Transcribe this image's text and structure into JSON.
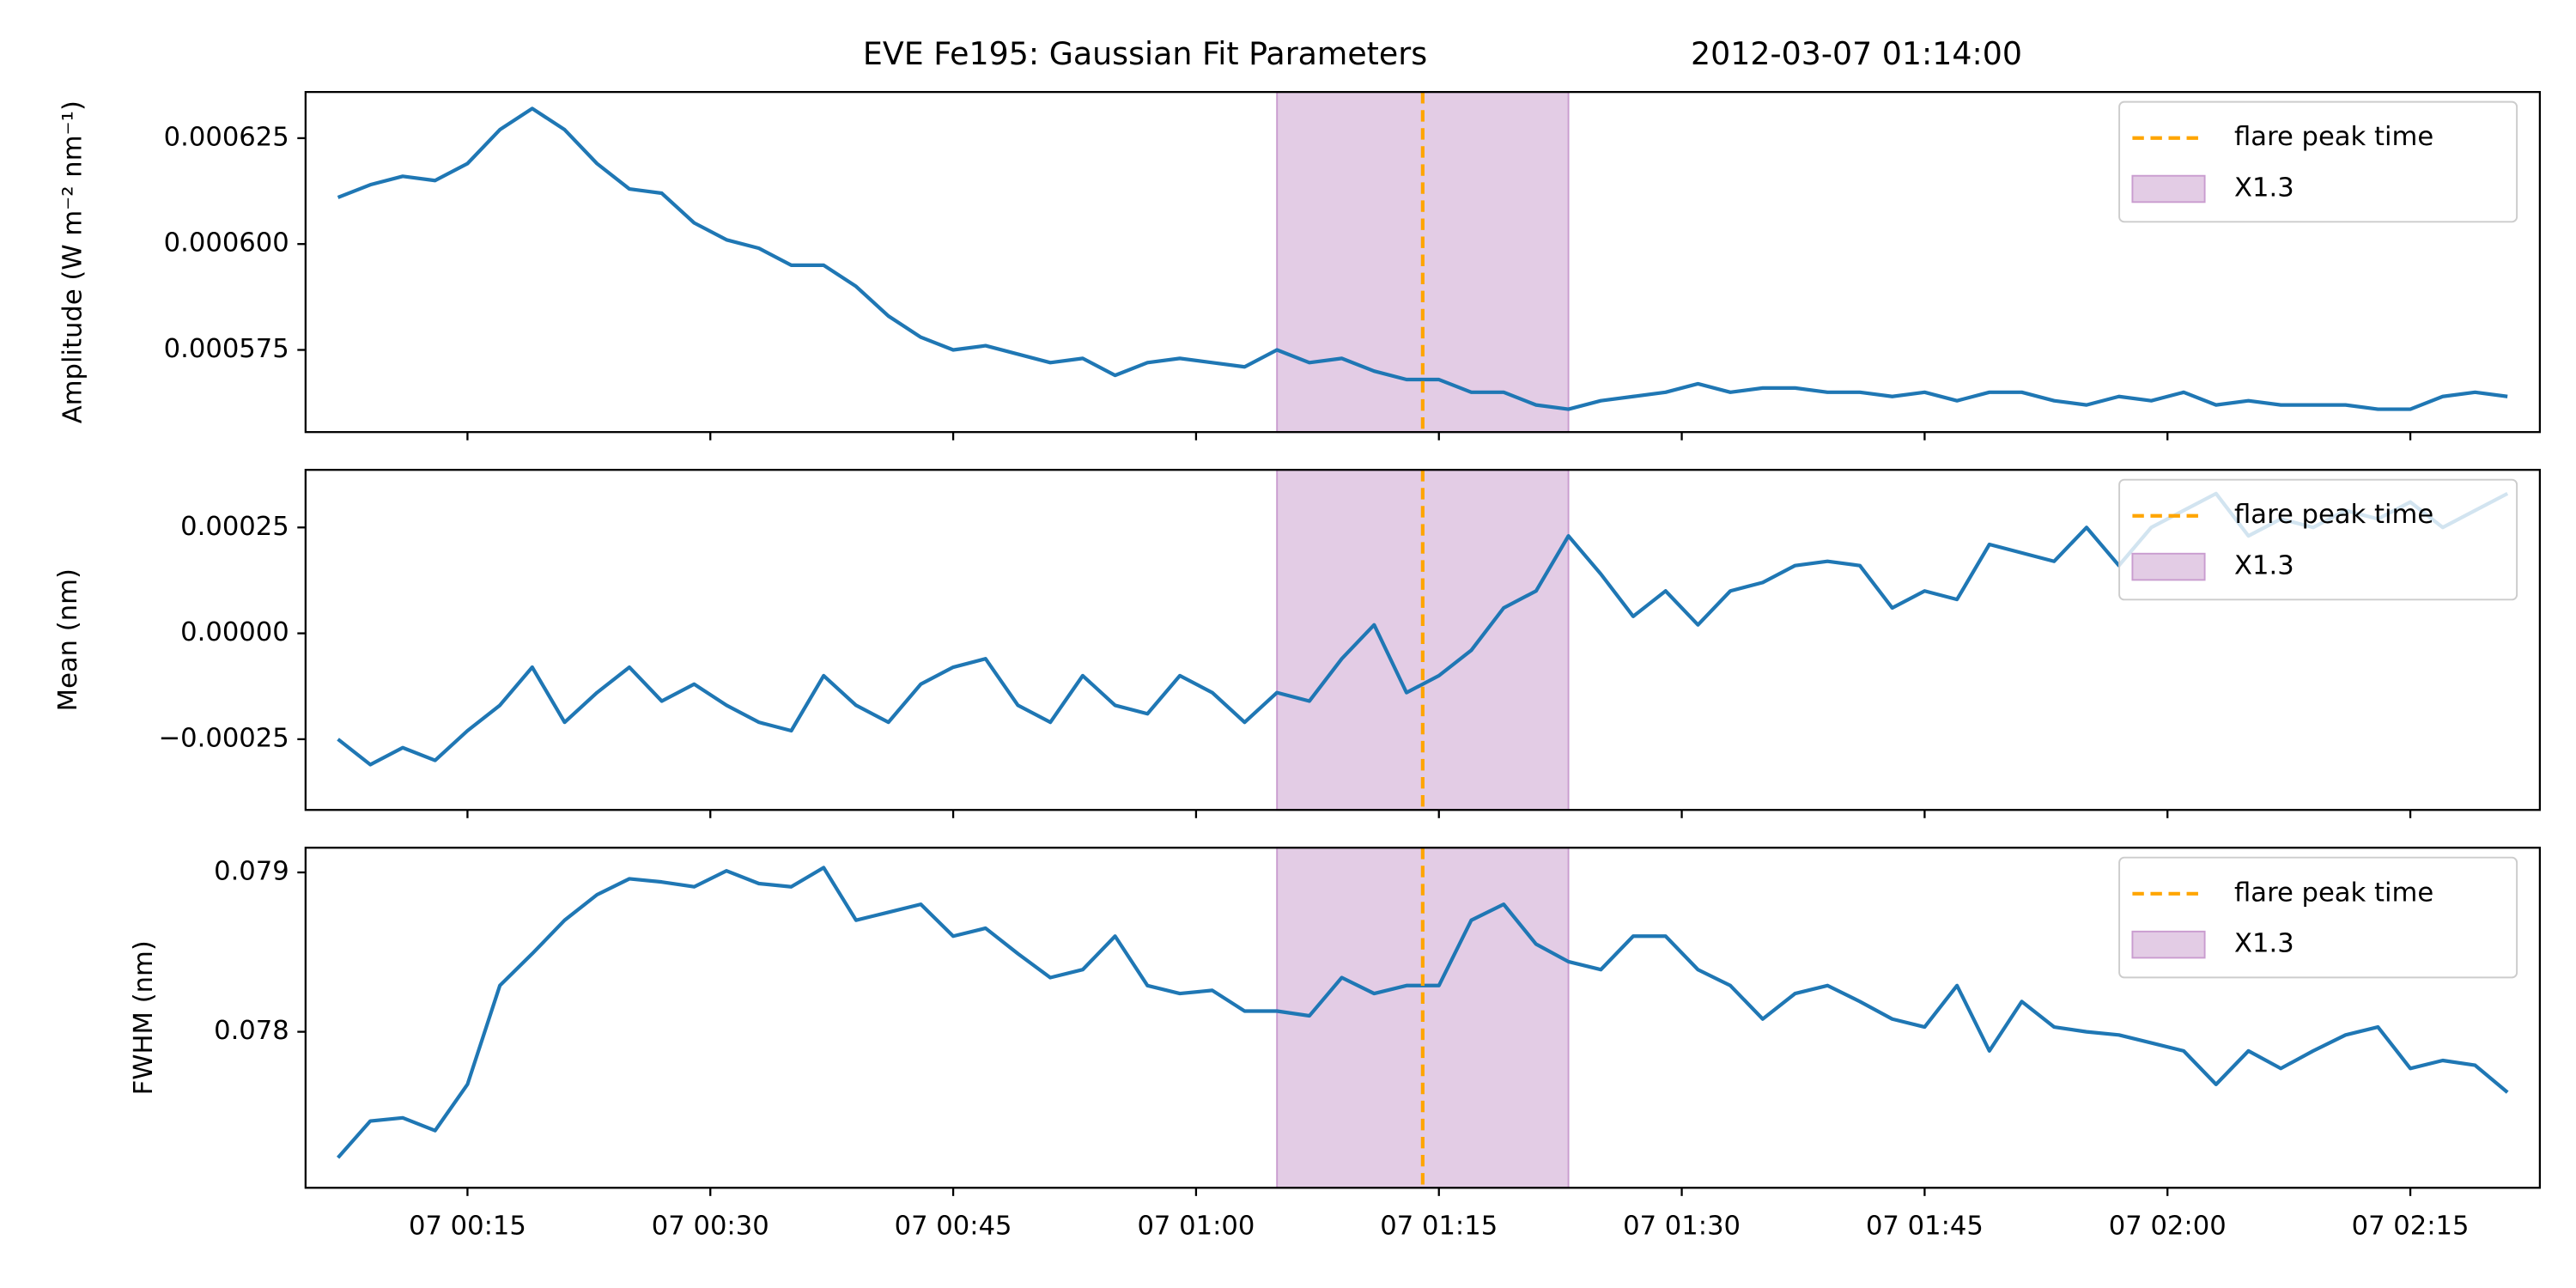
{
  "chart_data": [
    {
      "type": "line",
      "title": "EVE Fe195: Gaussian Fit Parameters",
      "subtitle": "2012-03-07 01:14:00",
      "ylabel": "Amplitude (W m⁻² nm⁻¹)",
      "color": "#1f77b4",
      "legend": "upper right",
      "x": [
        "00:07",
        "00:09",
        "00:11",
        "00:13",
        "00:15",
        "00:17",
        "00:19",
        "00:21",
        "00:23",
        "00:25",
        "00:27",
        "00:29",
        "00:31",
        "00:33",
        "00:35",
        "00:37",
        "00:39",
        "00:41",
        "00:43",
        "00:45",
        "00:47",
        "00:49",
        "00:51",
        "00:53",
        "00:55",
        "00:57",
        "00:59",
        "01:01",
        "01:03",
        "01:05",
        "01:07",
        "01:09",
        "01:11",
        "01:13",
        "01:15",
        "01:17",
        "01:19",
        "01:21",
        "01:23",
        "01:25",
        "01:27",
        "01:29",
        "01:31",
        "01:33",
        "01:35",
        "01:37",
        "01:39",
        "01:41",
        "01:43",
        "01:45",
        "01:47",
        "01:49",
        "01:51",
        "01:53",
        "01:55",
        "01:57",
        "01:59",
        "02:01",
        "02:03",
        "02:05",
        "02:07",
        "02:09",
        "02:11",
        "02:13",
        "02:15",
        "02:17",
        "02:19",
        "02:21"
      ],
      "values": [
        0.000611,
        0.000614,
        0.000616,
        0.000615,
        0.000619,
        0.000627,
        0.000632,
        0.000627,
        0.000619,
        0.000613,
        0.000612,
        0.000605,
        0.000601,
        0.000599,
        0.000595,
        0.000595,
        0.00059,
        0.000583,
        0.000578,
        0.000575,
        0.000576,
        0.000574,
        0.000572,
        0.000573,
        0.000569,
        0.000572,
        0.000573,
        0.000572,
        0.000571,
        0.000575,
        0.000572,
        0.000573,
        0.00057,
        0.000568,
        0.000568,
        0.000565,
        0.000565,
        0.000562,
        0.000561,
        0.000563,
        0.000564,
        0.000565,
        0.000567,
        0.000565,
        0.000566,
        0.000566,
        0.000565,
        0.000565,
        0.000564,
        0.000565,
        0.000563,
        0.000565,
        0.000565,
        0.000563,
        0.000562,
        0.000564,
        0.000563,
        0.000565,
        0.000562,
        0.000563,
        0.000562,
        0.000562,
        0.000562,
        0.000561,
        0.000561,
        0.000564,
        0.000565,
        0.000564
      ],
      "xlim": [
        "00:05",
        "02:23"
      ],
      "xticks": [
        "00:15",
        "00:30",
        "00:45",
        "01:00",
        "01:15",
        "01:30",
        "01:45",
        "02:00",
        "02:15"
      ],
      "ylim": [
        0.0005556,
        0.0006359
      ],
      "yticks": [
        {
          "value": 0.000575,
          "label": "0.000575"
        },
        {
          "value": 0.0006,
          "label": "0.000600"
        },
        {
          "value": 0.000625,
          "label": "0.000625"
        }
      ],
      "span": {
        "x": [
          "01:05",
          "01:23"
        ],
        "color": "#e3cce5",
        "label": "X1.3"
      },
      "vline": {
        "x": "01:14",
        "color": "#ffa500",
        "label": "flare peak time"
      }
    },
    {
      "type": "line",
      "ylabel": "Mean (nm)",
      "color": "#1f77b4",
      "legend": "upper right",
      "x": [
        "00:07",
        "00:09",
        "00:11",
        "00:13",
        "00:15",
        "00:17",
        "00:19",
        "00:21",
        "00:23",
        "00:25",
        "00:27",
        "00:29",
        "00:31",
        "00:33",
        "00:35",
        "00:37",
        "00:39",
        "00:41",
        "00:43",
        "00:45",
        "00:47",
        "00:49",
        "00:51",
        "00:53",
        "00:55",
        "00:57",
        "00:59",
        "01:01",
        "01:03",
        "01:05",
        "01:07",
        "01:09",
        "01:11",
        "01:13",
        "01:15",
        "01:17",
        "01:19",
        "01:21",
        "01:23",
        "01:25",
        "01:27",
        "01:29",
        "01:31",
        "01:33",
        "01:35",
        "01:37",
        "01:39",
        "01:41",
        "01:43",
        "01:45",
        "01:47",
        "01:49",
        "01:51",
        "01:53",
        "01:55",
        "01:57",
        "01:59",
        "02:01",
        "02:03",
        "02:05",
        "02:07",
        "02:09",
        "02:11",
        "02:13",
        "02:15",
        "02:17",
        "02:19",
        "02:21"
      ],
      "values": [
        -0.00025,
        -0.00031,
        -0.00027,
        -0.0003,
        -0.00023,
        -0.00017,
        -8e-05,
        -0.00021,
        -0.00014,
        -8e-05,
        -0.00016,
        -0.00012,
        -0.00017,
        -0.00021,
        -0.00023,
        -0.0001,
        -0.00017,
        -0.00021,
        -0.00012,
        -8e-05,
        -6e-05,
        -0.00017,
        -0.00021,
        -0.0001,
        -0.00017,
        -0.00019,
        -0.0001,
        -0.00014,
        -0.00021,
        -0.00014,
        -0.00016,
        -6e-05,
        2e-05,
        -0.00014,
        -0.0001,
        -4e-05,
        6e-05,
        0.0001,
        0.00023,
        0.00014,
        4e-05,
        0.0001,
        2e-05,
        0.0001,
        0.00012,
        0.00016,
        0.00017,
        0.00016,
        6e-05,
        0.0001,
        8e-05,
        0.00021,
        0.00019,
        0.00017,
        0.00025,
        0.00016,
        0.00025,
        0.00029,
        0.00033,
        0.00023,
        0.00027,
        0.00025,
        0.00029,
        0.00027,
        0.00031,
        0.00025,
        0.00029,
        0.00033
      ],
      "xlim": [
        "00:05",
        "02:23"
      ],
      "xticks": [
        "00:15",
        "00:30",
        "00:45",
        "01:00",
        "01:15",
        "01:30",
        "01:45",
        "02:00",
        "02:15"
      ],
      "ylim": [
        -0.000417,
        0.000386
      ],
      "yticks": [
        {
          "value": -0.00025,
          "label": "−0.00025"
        },
        {
          "value": 0,
          "label": "0.00000"
        },
        {
          "value": 0.00025,
          "label": "0.00025"
        }
      ],
      "span": {
        "x": [
          "01:05",
          "01:23"
        ],
        "color": "#e3cce5",
        "label": "X1.3"
      },
      "vline": {
        "x": "01:14",
        "color": "#ffa500",
        "label": "flare peak time"
      }
    },
    {
      "type": "line",
      "ylabel": "FWHM (nm)",
      "color": "#1f77b4",
      "legend": "upper right",
      "x": [
        "00:07",
        "00:09",
        "00:11",
        "00:13",
        "00:15",
        "00:17",
        "00:19",
        "00:21",
        "00:23",
        "00:25",
        "00:27",
        "00:29",
        "00:31",
        "00:33",
        "00:35",
        "00:37",
        "00:39",
        "00:41",
        "00:43",
        "00:45",
        "00:47",
        "00:49",
        "00:51",
        "00:53",
        "00:55",
        "00:57",
        "00:59",
        "01:01",
        "01:03",
        "01:05",
        "01:07",
        "01:09",
        "01:11",
        "01:13",
        "01:15",
        "01:17",
        "01:19",
        "01:21",
        "01:23",
        "01:25",
        "01:27",
        "01:29",
        "01:31",
        "01:33",
        "01:35",
        "01:37",
        "01:39",
        "01:41",
        "01:43",
        "01:45",
        "01:47",
        "01:49",
        "01:51",
        "01:53",
        "01:55",
        "01:57",
        "01:59",
        "02:01",
        "02:03",
        "02:05",
        "02:07",
        "02:09",
        "02:11",
        "02:13",
        "02:15",
        "02:17",
        "02:19",
        "02:21"
      ],
      "values": [
        0.07721,
        0.07744,
        0.07746,
        0.07738,
        0.07767,
        0.07829,
        0.07849,
        0.0787,
        0.07886,
        0.07896,
        0.07894,
        0.07891,
        0.07901,
        0.07893,
        0.07891,
        0.07903,
        0.0787,
        0.07875,
        0.0788,
        0.0786,
        0.07865,
        0.07849,
        0.07834,
        0.07839,
        0.0786,
        0.07829,
        0.07824,
        0.07826,
        0.07813,
        0.07813,
        0.0781,
        0.07834,
        0.07824,
        0.07829,
        0.07829,
        0.0787,
        0.0788,
        0.07855,
        0.07844,
        0.07839,
        0.0786,
        0.0786,
        0.07839,
        0.07829,
        0.07808,
        0.07824,
        0.07829,
        0.07819,
        0.07808,
        0.07803,
        0.07829,
        0.07788,
        0.07819,
        0.07803,
        0.078,
        0.07798,
        0.07793,
        0.07788,
        0.07767,
        0.07788,
        0.07777,
        0.07788,
        0.07798,
        0.07803,
        0.07777,
        0.07782,
        0.07779,
        0.07762
      ],
      "xlim": [
        "00:05",
        "02:23"
      ],
      "xticks": [
        {
          "value": "00:15",
          "label": "07 00:15"
        },
        {
          "value": "00:30",
          "label": "07 00:30"
        },
        {
          "value": "00:45",
          "label": "07 00:45"
        },
        {
          "value": "01:00",
          "label": "07 01:00"
        },
        {
          "value": "01:15",
          "label": "07 01:15"
        },
        {
          "value": "01:30",
          "label": "07 01:30"
        },
        {
          "value": "01:45",
          "label": "07 01:45"
        },
        {
          "value": "02:00",
          "label": "07 02:00"
        },
        {
          "value": "02:15",
          "label": "07 02:15"
        }
      ],
      "ylim": [
        0.077021,
        0.079155
      ],
      "yticks": [
        0.078,
        0.079
      ],
      "span": {
        "x": [
          "01:05",
          "01:23"
        ],
        "color": "#e3cce5",
        "label": "X1.3"
      },
      "vline": {
        "x": "01:14",
        "color": "#ffa500",
        "label": "flare peak time"
      }
    }
  ]
}
